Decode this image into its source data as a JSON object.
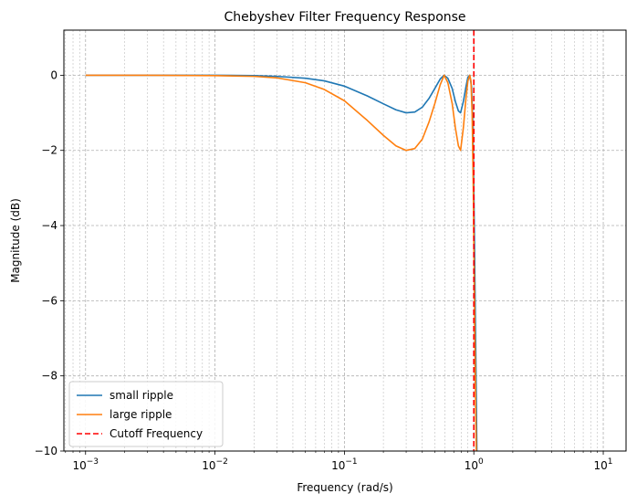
{
  "chart_data": {
    "type": "line",
    "title": "Chebyshev Filter Frequency Response",
    "xlabel": "Frequency (rad/s)",
    "ylabel": "Magnitude (dB)",
    "x_scale": "log",
    "xlim": [
      0.00068,
      15
    ],
    "ylim": [
      -10,
      1.2
    ],
    "x_ticks": [
      {
        "value": 0.001,
        "base": "10",
        "exp": "−3"
      },
      {
        "value": 0.01,
        "base": "10",
        "exp": "−2"
      },
      {
        "value": 0.1,
        "base": "10",
        "exp": "−1"
      },
      {
        "value": 1,
        "base": "10",
        "exp": "0"
      },
      {
        "value": 10,
        "base": "10",
        "exp": "1"
      }
    ],
    "y_ticks": [
      {
        "value": 0,
        "label": "0"
      },
      {
        "value": -2,
        "label": "−2"
      },
      {
        "value": -4,
        "label": "−4"
      },
      {
        "value": -6,
        "label": "−6"
      },
      {
        "value": -8,
        "label": "−8"
      },
      {
        "value": -10,
        "label": "−10"
      }
    ],
    "grid": true,
    "legend_position": "bottom-left",
    "series": [
      {
        "name": "small ripple",
        "color": "#1f77b4",
        "points": [
          [
            0.001,
            0.0
          ],
          [
            0.003,
            0.0
          ],
          [
            0.01,
            0.0
          ],
          [
            0.02,
            -0.01
          ],
          [
            0.03,
            -0.03
          ],
          [
            0.05,
            -0.08
          ],
          [
            0.07,
            -0.15
          ],
          [
            0.1,
            -0.29
          ],
          [
            0.15,
            -0.55
          ],
          [
            0.2,
            -0.76
          ],
          [
            0.25,
            -0.92
          ],
          [
            0.3,
            -1.0
          ],
          [
            0.35,
            -0.98
          ],
          [
            0.4,
            -0.85
          ],
          [
            0.45,
            -0.62
          ],
          [
            0.5,
            -0.35
          ],
          [
            0.55,
            -0.1
          ],
          [
            0.59,
            0.0
          ],
          [
            0.63,
            -0.08
          ],
          [
            0.68,
            -0.35
          ],
          [
            0.72,
            -0.7
          ],
          [
            0.76,
            -0.95
          ],
          [
            0.79,
            -1.0
          ],
          [
            0.83,
            -0.7
          ],
          [
            0.87,
            -0.3
          ],
          [
            0.9,
            -0.05
          ],
          [
            0.93,
            0.0
          ],
          [
            0.96,
            -0.3
          ],
          [
            0.98,
            -1.2
          ],
          [
            1.0,
            -3.0
          ],
          [
            1.02,
            -5.5
          ],
          [
            1.04,
            -8.0
          ],
          [
            1.06,
            -10.5
          ]
        ]
      },
      {
        "name": "large ripple",
        "color": "#ff7f0e",
        "points": [
          [
            0.001,
            0.0
          ],
          [
            0.003,
            0.0
          ],
          [
            0.01,
            -0.01
          ],
          [
            0.02,
            -0.03
          ],
          [
            0.03,
            -0.07
          ],
          [
            0.05,
            -0.2
          ],
          [
            0.07,
            -0.38
          ],
          [
            0.1,
            -0.68
          ],
          [
            0.15,
            -1.2
          ],
          [
            0.2,
            -1.6
          ],
          [
            0.25,
            -1.88
          ],
          [
            0.3,
            -2.0
          ],
          [
            0.35,
            -1.95
          ],
          [
            0.4,
            -1.7
          ],
          [
            0.45,
            -1.25
          ],
          [
            0.5,
            -0.75
          ],
          [
            0.55,
            -0.25
          ],
          [
            0.59,
            0.0
          ],
          [
            0.63,
            -0.2
          ],
          [
            0.68,
            -0.75
          ],
          [
            0.72,
            -1.4
          ],
          [
            0.76,
            -1.88
          ],
          [
            0.79,
            -2.0
          ],
          [
            0.83,
            -1.4
          ],
          [
            0.87,
            -0.6
          ],
          [
            0.9,
            -0.15
          ],
          [
            0.93,
            0.0
          ],
          [
            0.95,
            -0.15
          ],
          [
            0.97,
            -1.0
          ],
          [
            0.99,
            -3.0
          ],
          [
            1.01,
            -5.8
          ],
          [
            1.03,
            -8.5
          ],
          [
            1.05,
            -10.5
          ]
        ]
      },
      {
        "name": "Cutoff Frequency",
        "color": "#ff0000",
        "style": "dashed",
        "vertical_x": 1.0
      }
    ]
  }
}
